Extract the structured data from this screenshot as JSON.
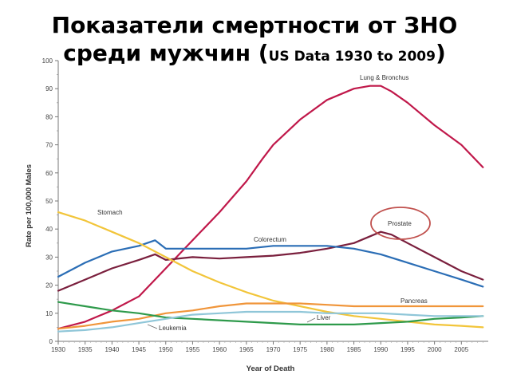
{
  "title": {
    "line1": "Показатели смертности от ЗНО",
    "line2_main": "среди мужчин",
    "line2_open": " (",
    "line2_sub": "US Data 1930 to 2009",
    "line2_close": ")"
  },
  "chart_data": {
    "type": "line",
    "xlabel": "Year of Death",
    "ylabel": "Rate per 100,000 Males",
    "xlim": [
      1930,
      2010
    ],
    "ylim": [
      0,
      100
    ],
    "x_ticks": [
      1930,
      1935,
      1940,
      1945,
      1950,
      1955,
      1960,
      1965,
      1970,
      1975,
      1980,
      1985,
      1990,
      1995,
      2000,
      2005
    ],
    "y_ticks": [
      0,
      10,
      20,
      30,
      40,
      50,
      60,
      70,
      80,
      90,
      100
    ],
    "highlight": {
      "series": "Prostate",
      "shape": "ellipse",
      "color": "#c0504d"
    },
    "series": [
      {
        "name": "Lung & Bronchus",
        "color": "#c0184a",
        "x": [
          1930,
          1935,
          1940,
          1945,
          1948,
          1950,
          1955,
          1960,
          1965,
          1968,
          1970,
          1975,
          1980,
          1985,
          1988,
          1990,
          1992,
          1995,
          2000,
          2005,
          2009
        ],
        "values": [
          4.5,
          7,
          11,
          16,
          22,
          26,
          36,
          46,
          57,
          65,
          70,
          79,
          86,
          90,
          91,
          91,
          89,
          85,
          77,
          70,
          62
        ]
      },
      {
        "name": "Prostate",
        "color": "#7a1f3d",
        "x": [
          1930,
          1935,
          1940,
          1945,
          1948,
          1950,
          1955,
          1960,
          1965,
          1970,
          1975,
          1980,
          1985,
          1990,
          1992,
          1995,
          2000,
          2005,
          2009
        ],
        "values": [
          18,
          22,
          26,
          29,
          31,
          29,
          30,
          29.5,
          30,
          30.5,
          31.5,
          33,
          35,
          39,
          38,
          35,
          30,
          25,
          22
        ]
      },
      {
        "name": "Colorectum",
        "color": "#2a6db5",
        "x": [
          1930,
          1935,
          1940,
          1945,
          1948,
          1950,
          1955,
          1960,
          1965,
          1970,
          1975,
          1980,
          1985,
          1990,
          1995,
          2000,
          2005,
          2009
        ],
        "values": [
          23,
          28,
          32,
          34,
          36,
          33,
          33,
          33,
          33,
          34,
          34,
          34,
          33,
          31,
          28,
          25,
          22,
          19.5
        ]
      },
      {
        "name": "Stomach",
        "color": "#f2c53a",
        "x": [
          1930,
          1935,
          1940,
          1945,
          1950,
          1955,
          1960,
          1965,
          1970,
          1975,
          1980,
          1985,
          1990,
          1995,
          2000,
          2005,
          2009
        ],
        "values": [
          46,
          43,
          39,
          35,
          30,
          25,
          21,
          17.5,
          14.5,
          12.5,
          10.5,
          9,
          8,
          7,
          6,
          5.5,
          5
        ]
      },
      {
        "name": "Pancreas",
        "color": "#f0953a",
        "x": [
          1930,
          1935,
          1940,
          1945,
          1950,
          1955,
          1960,
          1965,
          1970,
          1975,
          1980,
          1985,
          1990,
          1995,
          2000,
          2005,
          2009
        ],
        "values": [
          4.5,
          5.5,
          7,
          8,
          10,
          11,
          12.5,
          13.5,
          13.5,
          13.5,
          13,
          12.5,
          12.5,
          12.5,
          12.5,
          12.5,
          12.5
        ]
      },
      {
        "name": "Liver",
        "color": "#2e9a4b",
        "x": [
          1930,
          1935,
          1940,
          1945,
          1950,
          1955,
          1960,
          1965,
          1970,
          1975,
          1980,
          1985,
          1990,
          1995,
          2000,
          2005,
          2009
        ],
        "values": [
          14,
          12.5,
          11,
          10,
          8.5,
          8,
          7.5,
          7,
          6.5,
          6,
          6,
          6,
          6.5,
          7,
          8,
          8.5,
          9
        ]
      },
      {
        "name": "Leukemia",
        "color": "#8fc6d8",
        "x": [
          1930,
          1935,
          1940,
          1945,
          1950,
          1955,
          1960,
          1965,
          1970,
          1975,
          1980,
          1985,
          1990,
          1995,
          2000,
          2005,
          2009
        ],
        "values": [
          3.5,
          4,
          5,
          6.5,
          8,
          9.5,
          10,
          10.5,
          10.5,
          10.5,
          10,
          10,
          10,
          9.5,
          9,
          9,
          9
        ]
      }
    ]
  }
}
